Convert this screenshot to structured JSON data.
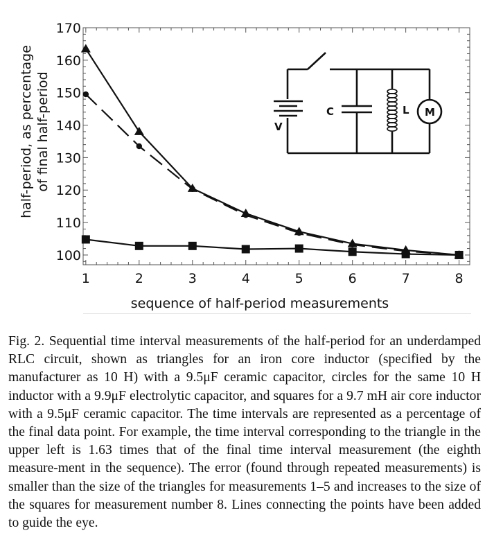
{
  "chart_data": {
    "type": "line",
    "xlabel": "sequence of half-period measurements",
    "ylabel_line1": "half-period, as percentage",
    "ylabel_line2": "of final half-period",
    "x": [
      1,
      2,
      3,
      4,
      5,
      6,
      7,
      8
    ],
    "xlim": [
      0.95,
      8.2
    ],
    "ylim": [
      97,
      170
    ],
    "xticks": [
      "1",
      "2",
      "3",
      "4",
      "5",
      "6",
      "7",
      "8"
    ],
    "yticks": [
      "100",
      "110",
      "120",
      "130",
      "140",
      "150",
      "160",
      "170"
    ],
    "series": [
      {
        "marker": "triangle",
        "line": "solid",
        "values": [
          163.5,
          138,
          120.5,
          112.8,
          107.2,
          103.5,
          101.5,
          100
        ]
      },
      {
        "marker": "circle",
        "line": "dashed",
        "values": [
          149.5,
          133.5,
          120.3,
          112.3,
          106.8,
          103.2,
          101.2,
          100
        ]
      },
      {
        "marker": "square",
        "line": "solid",
        "values": [
          104.8,
          102.8,
          102.8,
          101.8,
          102.0,
          101.0,
          100.3,
          100
        ]
      }
    ],
    "grid": false
  },
  "inset": {
    "labels": {
      "capacitor": "C",
      "inductor": "L",
      "battery": "V",
      "meter": "M"
    }
  },
  "caption": "Fig. 2. Sequential time interval measurements of the half-period for an underdamped RLC circuit, shown as triangles for an iron core inductor (specified by the manufacturer as 10 H) with a 9.5μF ceramic capacitor, circles for the same 10 H inductor with a 9.9μF electrolytic capacitor, and squares for a 9.7 mH air core inductor with a 9.5μF ceramic capacitor. The time intervals are represented as a percentage of the final data point. For example, the time interval corresponding to the triangle in the upper left is 1.63 times that of the final time interval measurement (the eighth measure-ment in the sequence). The error (found through repeated measurements) is smaller than the size of the triangles for measurements 1–5 and increases to the size of the squares for measurement number 8. Lines connecting the points have been added to guide the eye."
}
